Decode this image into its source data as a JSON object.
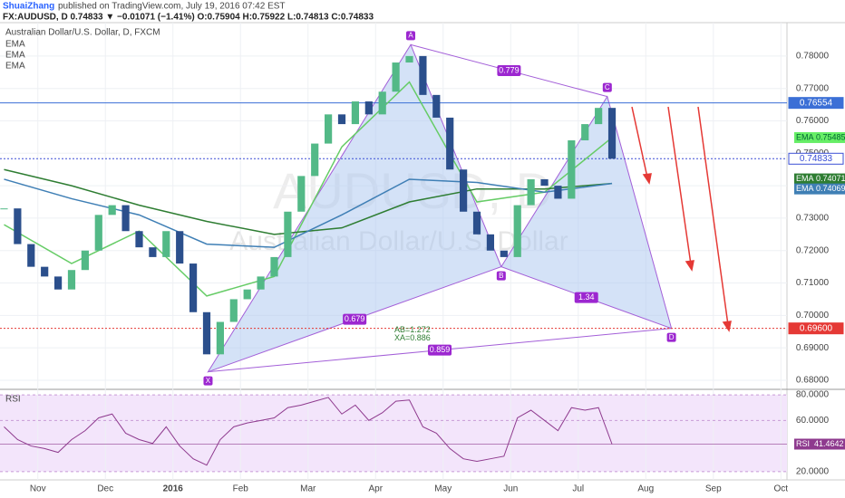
{
  "chart_data": {
    "type": "candlestick",
    "header": {
      "author": "ShuaiZhang",
      "published": "published on TradingView.com, July 19, 2016 07:42 EST",
      "symbol": "FX:AUDUSD, D 0.74833 ▼ −0.01071 (−1.41%) O:0.75904 H:0.75922 L:0.74813 C:0.74833"
    },
    "legend": [
      "Australian Dollar/U.S. Dollar, D, FXCM",
      "EMA",
      "EMA",
      "EMA"
    ],
    "watermark": [
      "AUDUSD, D",
      "Australian Dollar/U.S. Dollar"
    ],
    "up_color": "#53b987",
    "down_color": "#2b4f8c",
    "x": [
      -0.5,
      -0.3,
      -0.1,
      0.1,
      0.3,
      0.5,
      0.7,
      0.9,
      1.1,
      1.3,
      1.5,
      1.7,
      1.9,
      2.1,
      2.3,
      2.5,
      2.7,
      2.9,
      3.1,
      3.3,
      3.5,
      3.7,
      3.9,
      4.1,
      4.3,
      4.5,
      4.7,
      4.9,
      5.1,
      5.3,
      5.5,
      5.7,
      5.9,
      6.1,
      6.3,
      6.5,
      6.7,
      6.9,
      7.1,
      7.3,
      7.5,
      7.7,
      7.9,
      8.1,
      8.3,
      8.5
    ],
    "close": [
      0.733,
      0.722,
      0.715,
      0.712,
      0.708,
      0.714,
      0.72,
      0.731,
      0.734,
      0.726,
      0.721,
      0.718,
      0.726,
      0.716,
      0.701,
      0.688,
      0.698,
      0.705,
      0.708,
      0.712,
      0.718,
      0.732,
      0.743,
      0.753,
      0.762,
      0.759,
      0.766,
      0.762,
      0.769,
      0.778,
      0.78,
      0.768,
      0.761,
      0.745,
      0.732,
      0.725,
      0.72,
      0.718,
      0.734,
      0.742,
      0.74,
      0.736,
      0.754,
      0.759,
      0.764,
      0.74833
    ],
    "series": [
      {
        "name": "EMA",
        "color": "#66cc66",
        "x": [
          -0.5,
          0.5,
          1.5,
          2.5,
          3.5,
          4.5,
          5.5,
          6.5,
          7.5,
          8.5
        ],
        "values": [
          0.728,
          0.716,
          0.726,
          0.706,
          0.712,
          0.752,
          0.772,
          0.735,
          0.738,
          0.75485
        ],
        "last": {
          "value": 0.75485,
          "label": "0.75485"
        }
      },
      {
        "name": "EMA",
        "color": "#2e7d32",
        "x": [
          -0.5,
          0.5,
          1.5,
          2.5,
          3.5,
          4.5,
          5.5,
          6.5,
          7.5,
          8.5
        ],
        "values": [
          0.745,
          0.74,
          0.734,
          0.729,
          0.725,
          0.727,
          0.735,
          0.739,
          0.739,
          0.74071
        ],
        "last": {
          "value": 0.74071,
          "label": "0.74071"
        }
      },
      {
        "name": "EMA",
        "color": "#3f7fb5",
        "x": [
          -0.5,
          0.5,
          1.5,
          2.5,
          3.5,
          4.5,
          5.5,
          6.5,
          7.5,
          8.5
        ],
        "values": [
          0.742,
          0.736,
          0.731,
          0.722,
          0.721,
          0.731,
          0.742,
          0.741,
          0.738,
          0.74069
        ],
        "last": {
          "value": 0.74069,
          "label": "0.74069"
        }
      }
    ],
    "levels": [
      {
        "value": 0.76554,
        "label": "0.76554",
        "color": "#3b6fd6"
      },
      {
        "value": 0.74833,
        "label": "0.74833",
        "color": "#3b4fd6"
      },
      {
        "value": 0.696,
        "label": "0.69600",
        "color": "#e53935"
      }
    ],
    "pattern": {
      "points": [
        {
          "label": "X",
          "x": 2.52,
          "y": 0.6826
        },
        {
          "label": "A",
          "x": 5.52,
          "y": 0.7835
        },
        {
          "label": "B",
          "x": 6.86,
          "y": 0.715
        },
        {
          "label": "C",
          "x": 8.43,
          "y": 0.7675
        },
        {
          "label": "D",
          "x": 9.38,
          "y": 0.696
        }
      ],
      "ratios": [
        "0.679",
        "0.779",
        "1.34",
        "0.859"
      ],
      "notes": [
        "AB=1.272",
        "XA=0.886"
      ]
    },
    "xlim": [
      -0.56,
      11.09
    ],
    "ylim": [
      0.7903,
      0.6772
    ],
    "xticks": [
      {
        "value": 0,
        "label": "Nov"
      },
      {
        "value": 1,
        "label": "Dec"
      },
      {
        "value": 2,
        "label": "2016"
      },
      {
        "value": 3,
        "label": "Feb"
      },
      {
        "value": 4,
        "label": "Mar"
      },
      {
        "value": 5,
        "label": "Apr"
      },
      {
        "value": 6,
        "label": "May"
      },
      {
        "value": 7,
        "label": "Jun"
      },
      {
        "value": 8,
        "label": "Jul"
      },
      {
        "value": 9,
        "label": "Aug"
      },
      {
        "value": 10,
        "label": "Sep"
      },
      {
        "value": 11,
        "label": "Oct"
      }
    ],
    "yticks": [
      {
        "value": 0.68,
        "label": "0.68000"
      },
      {
        "value": 0.69,
        "label": "0.69000"
      },
      {
        "value": 0.7,
        "label": "0.70000"
      },
      {
        "value": 0.71,
        "label": "0.71000"
      },
      {
        "value": 0.72,
        "label": "0.72000"
      },
      {
        "value": 0.73,
        "label": "0.73000"
      },
      {
        "value": 0.74,
        "label": "0.74000"
      },
      {
        "value": 0.75,
        "label": "0.75000"
      },
      {
        "value": 0.76,
        "label": "0.76000"
      },
      {
        "value": 0.77,
        "label": "0.77000"
      },
      {
        "value": 0.78,
        "label": "0.78000"
      }
    ],
    "rsi": {
      "name": "RSI",
      "color": "#8e3a8e",
      "values": [
        55,
        45,
        40,
        38,
        35,
        45,
        52,
        62,
        65,
        50,
        45,
        42,
        55,
        40,
        30,
        25,
        45,
        55,
        58,
        60,
        62,
        70,
        72,
        75,
        78,
        65,
        72,
        60,
        66,
        75,
        76,
        55,
        50,
        38,
        30,
        28,
        30,
        32,
        62,
        68,
        60,
        52,
        70,
        68,
        70,
        41.4642
      ],
      "last": {
        "value": 41.4642,
        "label": "41.4642"
      },
      "ylim": [
        84.3,
        13.5
      ],
      "yticks": [
        {
          "value": 80,
          "label": "80.0000"
        },
        {
          "value": 60,
          "label": "60.0000"
        },
        {
          "value": 20,
          "label": "20.0000"
        }
      ]
    }
  }
}
